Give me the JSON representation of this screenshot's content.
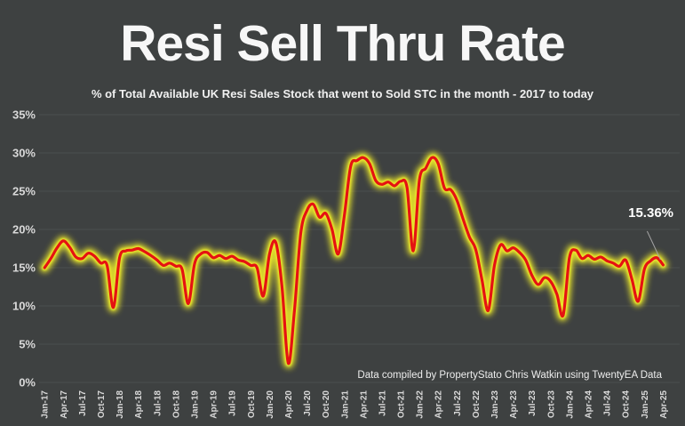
{
  "header": {
    "title": "Resi Sell Thru Rate",
    "subtitle": "% of Total Available UK Resi Sales Stock that went to Sold STC in the month - 2017 to today"
  },
  "annotation": {
    "label": "15.36%"
  },
  "footer": {
    "credit": "Data compiled by PropertyStato Chris Watkin using TwentyEA Data"
  },
  "colors": {
    "background": "#3e4141",
    "gridline": "#4b4e4e",
    "line_red": "#e51212",
    "glow_yellow": "#eeea2a",
    "axis_text": "#d9d9d9",
    "leader_line": "#a6a6a6",
    "title_text": "#f7f7f7"
  },
  "chart_data": {
    "type": "line",
    "title": "Resi Sell Thru Rate",
    "subtitle": "% of Total Available UK Resi Sales Stock that went to Sold STC in the month - 2017 to today",
    "x": [
      "Jan-17",
      "Feb-17",
      "Mar-17",
      "Apr-17",
      "May-17",
      "Jun-17",
      "Jul-17",
      "Aug-17",
      "Sep-17",
      "Oct-17",
      "Nov-17",
      "Dec-17",
      "Jan-18",
      "Feb-18",
      "Mar-18",
      "Apr-18",
      "May-18",
      "Jun-18",
      "Jul-18",
      "Aug-18",
      "Sep-18",
      "Oct-18",
      "Nov-18",
      "Dec-18",
      "Jan-19",
      "Feb-19",
      "Mar-19",
      "Apr-19",
      "May-19",
      "Jun-19",
      "Jul-19",
      "Aug-19",
      "Sep-19",
      "Oct-19",
      "Nov-19",
      "Dec-19",
      "Jan-20",
      "Feb-20",
      "Mar-20",
      "Apr-20",
      "May-20",
      "Jun-20",
      "Jul-20",
      "Aug-20",
      "Sep-20",
      "Oct-20",
      "Nov-20",
      "Dec-20",
      "Jan-21",
      "Feb-21",
      "Mar-21",
      "Apr-21",
      "May-21",
      "Jun-21",
      "Jul-21",
      "Aug-21",
      "Sep-21",
      "Oct-21",
      "Nov-21",
      "Dec-21",
      "Jan-22",
      "Feb-22",
      "Mar-22",
      "Apr-22",
      "May-22",
      "Jun-22",
      "Jul-22",
      "Aug-22",
      "Sep-22",
      "Oct-22",
      "Nov-22",
      "Dec-22",
      "Jan-23",
      "Feb-23",
      "Mar-23",
      "Apr-23",
      "May-23",
      "Jun-23",
      "Jul-23",
      "Aug-23",
      "Sep-23",
      "Oct-23",
      "Nov-23",
      "Dec-23",
      "Jan-24",
      "Feb-24",
      "Mar-24",
      "Apr-24",
      "May-24",
      "Jun-24",
      "Jul-24",
      "Aug-24",
      "Sep-24",
      "Oct-24",
      "Nov-24",
      "Dec-24",
      "Jan-25",
      "Feb-25",
      "Mar-25",
      "Apr-25"
    ],
    "values": [
      15.0,
      16.2,
      17.6,
      18.5,
      17.7,
      16.4,
      16.2,
      16.9,
      16.5,
      15.6,
      15.3,
      9.8,
      16.3,
      17.2,
      17.3,
      17.5,
      17.1,
      16.6,
      16.0,
      15.3,
      15.6,
      15.2,
      14.8,
      10.3,
      15.5,
      16.8,
      17.0,
      16.3,
      16.6,
      16.2,
      16.5,
      16.0,
      15.8,
      15.3,
      15.0,
      11.3,
      16.8,
      18.3,
      12.5,
      2.5,
      9.5,
      19.5,
      22.5,
      23.3,
      21.6,
      22.1,
      20.0,
      16.8,
      22.0,
      28.3,
      29.0,
      29.4,
      28.6,
      26.4,
      25.9,
      26.2,
      25.7,
      26.3,
      25.5,
      17.2,
      26.5,
      28.0,
      29.4,
      28.6,
      25.4,
      25.2,
      23.8,
      21.3,
      19.0,
      17.4,
      13.4,
      9.4,
      15.3,
      18.0,
      17.2,
      17.6,
      17.0,
      16.0,
      14.0,
      12.8,
      13.7,
      13.2,
      11.5,
      8.8,
      16.3,
      17.3,
      16.2,
      16.6,
      16.1,
      16.4,
      15.9,
      15.6,
      15.2,
      16.0,
      13.5,
      10.6,
      14.8,
      15.9,
      16.3,
      15.36
    ],
    "xlabel": "",
    "ylabel": "",
    "ylim": [
      0,
      35
    ],
    "y_ticks": [
      "0%",
      "5%",
      "10%",
      "15%",
      "20%",
      "25%",
      "30%",
      "35%"
    ],
    "y_tick_values": [
      0,
      5,
      10,
      15,
      20,
      25,
      30,
      35
    ],
    "x_tick_every": 3,
    "grid": true,
    "legend": "none",
    "annotation": {
      "text": "15.36%",
      "x": "Apr-25",
      "y": 15.36
    }
  }
}
